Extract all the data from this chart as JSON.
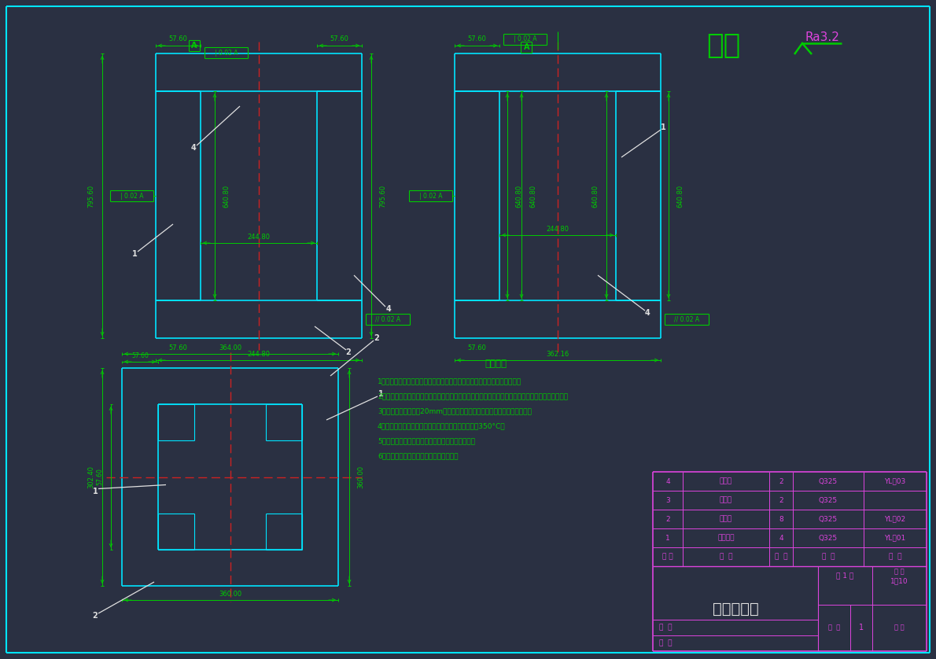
{
  "bg_color": "#2a3042",
  "line_color": "#00e5ff",
  "center_color": "#cc2222",
  "green_color": "#00cc00",
  "magenta_color": "#dd44dd",
  "white_color": "#e0e0e0",
  "title_text": "机架焊合图",
  "scale_text": "比 例",
  "scale_value": "1：10",
  "sheet_text": "第 1 张",
  "quantity_label": "数  量",
  "quantity_value": "1",
  "drawing_num_label": "图 号",
  "zhitu_label": "制  图",
  "shenhe_label": "审  核",
  "table_rows_ordered": [
    {
      "num": "4",
      "name": "下竖梁",
      "qty": "2",
      "material": "Q325",
      "note": "YL－03"
    },
    {
      "num": "3",
      "name": "下横梁",
      "qty": "2",
      "material": "Q325",
      "note": ""
    },
    {
      "num": "2",
      "name": "管封口",
      "qty": "8",
      "material": "Q325",
      "note": "YL－02"
    },
    {
      "num": "1",
      "name": "支架竖梁",
      "qty": "4",
      "material": "Q325",
      "note": "YL－01"
    },
    {
      "num": "序 号",
      "name": "名  称",
      "qty": "数  量",
      "material": "材  料",
      "note": "备  注"
    }
  ],
  "tech_title": "技术要求",
  "tech_lines": [
    "1、焊接前必须将缺陷彻底清除，坡口面应修的平整圆滑，不得有尖角存在。",
    "2、根据铸钢件缺陷情况，对焊接区缺陷可采用铲挖、磨削、炭弧气刨、气割或机械加工等方法清除。",
    "3、焊接区及坡口周围20mm以内的粘砂、油、水、锈等脏物必须彻底清理。",
    "4、在焊接的全过程中，铸钢件预热区的温度不得低于350°C。",
    "5、在条件允许的情况下，尽可能在水平位置施焊。",
    "6、补焊时，焊条不应做过大的横向摆动。"
  ],
  "qiyu_text": "其余",
  "ra_text": "Ra3.2"
}
